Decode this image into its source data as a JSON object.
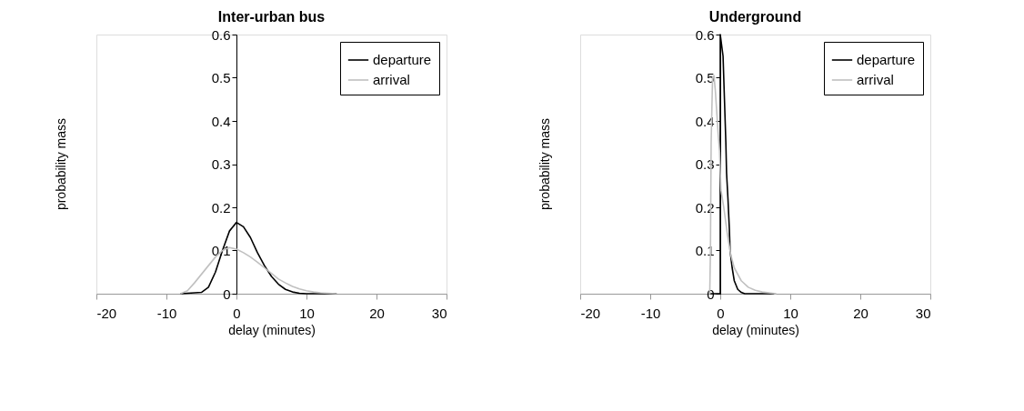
{
  "chart_data": [
    {
      "type": "line",
      "title": "Inter-urban bus",
      "xlabel": "delay (minutes)",
      "ylabel": "probability mass",
      "xlim": [
        -20,
        30
      ],
      "xticks": [
        -20,
        -10,
        0,
        10,
        20,
        30
      ],
      "ylim": [
        0,
        0.6
      ],
      "yticks": [
        0,
        0.1,
        0.2,
        0.3,
        0.4,
        0.5,
        0.6
      ],
      "grid": false,
      "legend": "top right",
      "series": [
        {
          "name": "departure",
          "color": "#000000",
          "x": [
            -8,
            -5,
            -4,
            -3,
            -2,
            -1,
            0,
            1,
            2,
            3,
            4,
            5,
            6,
            7,
            8,
            9,
            10,
            14.3
          ],
          "values": [
            0,
            0.003,
            0.015,
            0.05,
            0.1,
            0.145,
            0.165,
            0.155,
            0.13,
            0.095,
            0.065,
            0.04,
            0.022,
            0.01,
            0.004,
            0.001,
            0,
            0
          ]
        },
        {
          "name": "arrival",
          "color": "#c0c0c0",
          "x": [
            -8,
            -7,
            -6,
            -5,
            -4,
            -3,
            -2,
            -1,
            0,
            1,
            2,
            3,
            4,
            5,
            6,
            7,
            8,
            9,
            10,
            11,
            12,
            14.3
          ],
          "values": [
            0,
            0.007,
            0.025,
            0.045,
            0.065,
            0.085,
            0.1,
            0.107,
            0.103,
            0.095,
            0.085,
            0.073,
            0.06,
            0.047,
            0.034,
            0.025,
            0.017,
            0.011,
            0.007,
            0.004,
            0.002,
            0
          ]
        }
      ]
    },
    {
      "type": "line",
      "title": "Underground",
      "xlabel": "delay (minutes)",
      "ylabel": "probability mass",
      "xlim": [
        -20,
        30
      ],
      "xticks": [
        -20,
        -10,
        0,
        10,
        20,
        30
      ],
      "ylim": [
        0,
        0.6
      ],
      "yticks": [
        0,
        0.1,
        0.2,
        0.3,
        0.4,
        0.5,
        0.6
      ],
      "grid": false,
      "legend": "top right",
      "series": [
        {
          "name": "departure",
          "color": "#000000",
          "x": [
            -1.4,
            0,
            0,
            0.4,
            0.6,
            0.8,
            0.9,
            1.1,
            1.3,
            1.4,
            1.7,
            2,
            2.5,
            3,
            3.5,
            7.7
          ],
          "values": [
            0,
            0,
            0.6,
            0.55,
            0.45,
            0.35,
            0.28,
            0.22,
            0.15,
            0.1,
            0.06,
            0.03,
            0.01,
            0.003,
            0,
            0
          ]
        },
        {
          "name": "arrival",
          "color": "#c0c0c0",
          "x": [
            -1.5,
            -1.4,
            -1.3,
            -1.1,
            -0.9,
            -0.7,
            -0.5,
            -0.3,
            -0.1,
            0.1,
            0.5,
            1,
            1.5,
            2,
            3,
            4,
            5,
            6,
            8
          ],
          "values": [
            0,
            0.1,
            0.35,
            0.5,
            0.505,
            0.47,
            0.42,
            0.37,
            0.33,
            0.24,
            0.2,
            0.14,
            0.09,
            0.06,
            0.03,
            0.015,
            0.008,
            0.004,
            0
          ]
        }
      ]
    }
  ]
}
